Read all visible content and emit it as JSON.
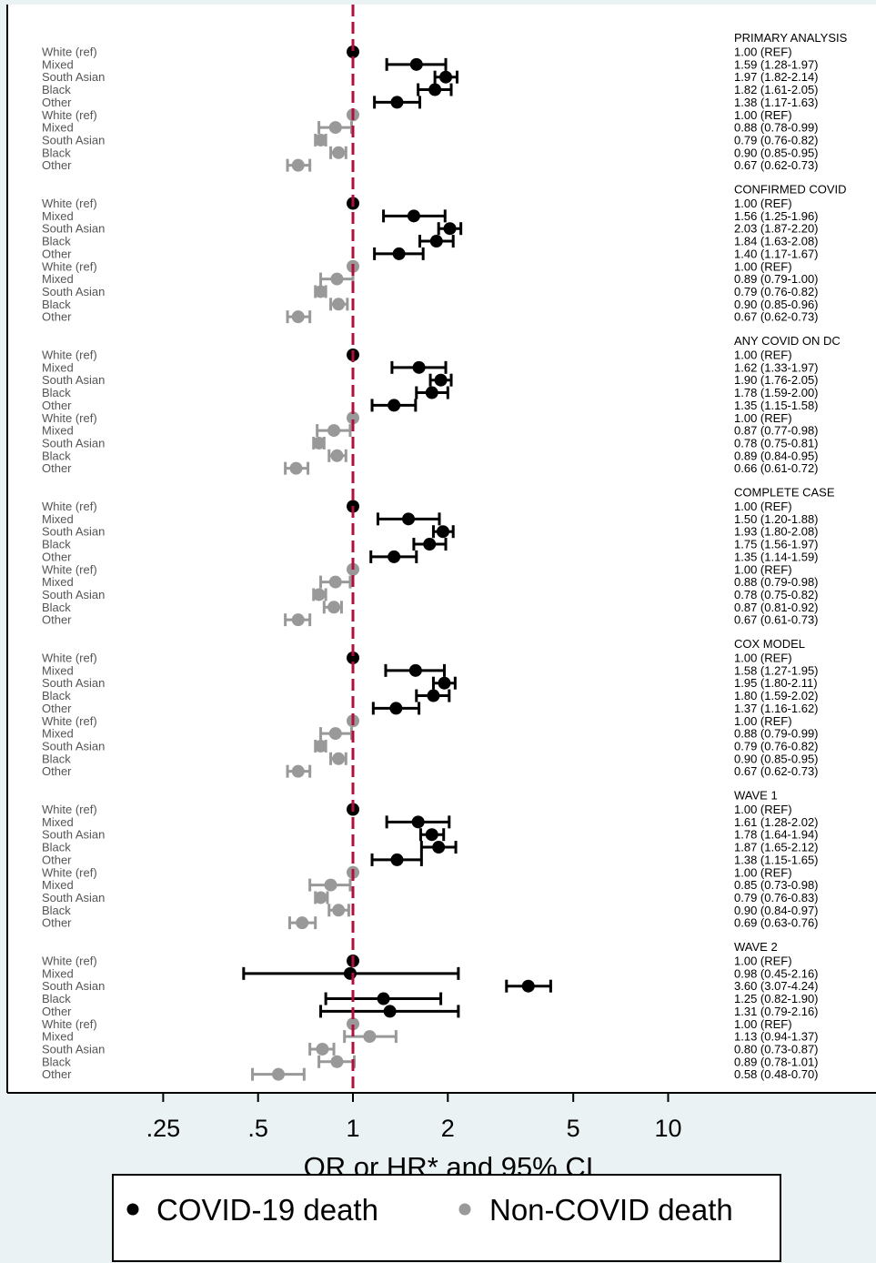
{
  "chart_data": {
    "type": "scatter",
    "subtype": "forest-plot",
    "x_scale": "log",
    "xlim": [
      0.2,
      19.5
    ],
    "reference_line_x": 1,
    "xticks": [
      0.25,
      0.5,
      1,
      2,
      5,
      10
    ],
    "xtick_labels": [
      ".25",
      ".5",
      "1",
      "2",
      "5",
      "10"
    ],
    "xlabel": "OR or HR* and 95% CI",
    "legend": [
      {
        "label": "COVID-19 death",
        "color": "#000000"
      },
      {
        "label": "Non-COVID death",
        "color": "#999999"
      }
    ],
    "legend_position": "bottom",
    "series_colors": {
      "covid": "#000000",
      "noncovid": "#999999"
    },
    "reference_line_color": "#b0103a",
    "panels": [
      {
        "title": "PRIMARY ANALYSIS",
        "rows": [
          {
            "label": "White (ref)",
            "series": "covid",
            "est": 1.0,
            "lo": 1.0,
            "hi": 1.0,
            "text": "1.00 (REF)"
          },
          {
            "label": "Mixed",
            "series": "covid",
            "est": 1.59,
            "lo": 1.28,
            "hi": 1.97,
            "text": "1.59 (1.28-1.97)"
          },
          {
            "label": "South Asian",
            "series": "covid",
            "est": 1.97,
            "lo": 1.82,
            "hi": 2.14,
            "text": "1.97 (1.82-2.14)"
          },
          {
            "label": "Black",
            "series": "covid",
            "est": 1.82,
            "lo": 1.61,
            "hi": 2.05,
            "text": "1.82 (1.61-2.05)"
          },
          {
            "label": "Other",
            "series": "covid",
            "est": 1.38,
            "lo": 1.17,
            "hi": 1.63,
            "text": "1.38 (1.17-1.63)"
          },
          {
            "label": "White (ref)",
            "series": "noncovid",
            "est": 1.0,
            "lo": 1.0,
            "hi": 1.0,
            "text": "1.00 (REF)"
          },
          {
            "label": "Mixed",
            "series": "noncovid",
            "est": 0.88,
            "lo": 0.78,
            "hi": 0.99,
            "text": "0.88 (0.78-0.99)"
          },
          {
            "label": "South Asian",
            "series": "noncovid",
            "est": 0.79,
            "lo": 0.76,
            "hi": 0.82,
            "text": "0.79 (0.76-0.82)"
          },
          {
            "label": "Black",
            "series": "noncovid",
            "est": 0.9,
            "lo": 0.85,
            "hi": 0.95,
            "text": "0.90 (0.85-0.95)"
          },
          {
            "label": "Other",
            "series": "noncovid",
            "est": 0.67,
            "lo": 0.62,
            "hi": 0.73,
            "text": "0.67 (0.62-0.73)"
          }
        ]
      },
      {
        "title": "CONFIRMED COVID",
        "rows": [
          {
            "label": "White (ref)",
            "series": "covid",
            "est": 1.0,
            "lo": 1.0,
            "hi": 1.0,
            "text": "1.00 (REF)"
          },
          {
            "label": "Mixed",
            "series": "covid",
            "est": 1.56,
            "lo": 1.25,
            "hi": 1.96,
            "text": "1.56 (1.25-1.96)"
          },
          {
            "label": "South Asian",
            "series": "covid",
            "est": 2.03,
            "lo": 1.87,
            "hi": 2.2,
            "text": "2.03 (1.87-2.20)"
          },
          {
            "label": "Black",
            "series": "covid",
            "est": 1.84,
            "lo": 1.63,
            "hi": 2.08,
            "text": "1.84 (1.63-2.08)"
          },
          {
            "label": "Other",
            "series": "covid",
            "est": 1.4,
            "lo": 1.17,
            "hi": 1.67,
            "text": "1.40 (1.17-1.67)"
          },
          {
            "label": "White (ref)",
            "series": "noncovid",
            "est": 1.0,
            "lo": 1.0,
            "hi": 1.0,
            "text": "1.00 (REF)"
          },
          {
            "label": "Mixed",
            "series": "noncovid",
            "est": 0.89,
            "lo": 0.79,
            "hi": 1.0,
            "text": "0.89 (0.79-1.00)"
          },
          {
            "label": "South Asian",
            "series": "noncovid",
            "est": 0.79,
            "lo": 0.76,
            "hi": 0.82,
            "text": "0.79 (0.76-0.82)"
          },
          {
            "label": "Black",
            "series": "noncovid",
            "est": 0.9,
            "lo": 0.85,
            "hi": 0.96,
            "text": "0.90 (0.85-0.96)"
          },
          {
            "label": "Other",
            "series": "noncovid",
            "est": 0.67,
            "lo": 0.62,
            "hi": 0.73,
            "text": "0.67 (0.62-0.73)"
          }
        ]
      },
      {
        "title": "ANY COVID ON DC",
        "rows": [
          {
            "label": "White (ref)",
            "series": "covid",
            "est": 1.0,
            "lo": 1.0,
            "hi": 1.0,
            "text": "1.00 (REF)"
          },
          {
            "label": "Mixed",
            "series": "covid",
            "est": 1.62,
            "lo": 1.33,
            "hi": 1.97,
            "text": "1.62 (1.33-1.97)"
          },
          {
            "label": "South Asian",
            "series": "covid",
            "est": 1.9,
            "lo": 1.76,
            "hi": 2.05,
            "text": "1.90 (1.76-2.05)"
          },
          {
            "label": "Black",
            "series": "covid",
            "est": 1.78,
            "lo": 1.59,
            "hi": 2.0,
            "text": "1.78 (1.59-2.00)"
          },
          {
            "label": "Other",
            "series": "covid",
            "est": 1.35,
            "lo": 1.15,
            "hi": 1.58,
            "text": "1.35 (1.15-1.58)"
          },
          {
            "label": "White (ref)",
            "series": "noncovid",
            "est": 1.0,
            "lo": 1.0,
            "hi": 1.0,
            "text": "1.00 (REF)"
          },
          {
            "label": "Mixed",
            "series": "noncovid",
            "est": 0.87,
            "lo": 0.77,
            "hi": 0.98,
            "text": "0.87 (0.77-0.98)"
          },
          {
            "label": "South Asian",
            "series": "noncovid",
            "est": 0.78,
            "lo": 0.75,
            "hi": 0.81,
            "text": "0.78 (0.75-0.81)"
          },
          {
            "label": "Black",
            "series": "noncovid",
            "est": 0.89,
            "lo": 0.84,
            "hi": 0.95,
            "text": "0.89 (0.84-0.95)"
          },
          {
            "label": "Other",
            "series": "noncovid",
            "est": 0.66,
            "lo": 0.61,
            "hi": 0.72,
            "text": "0.66 (0.61-0.72)"
          }
        ]
      },
      {
        "title": "COMPLETE CASE",
        "rows": [
          {
            "label": "White (ref)",
            "series": "covid",
            "est": 1.0,
            "lo": 1.0,
            "hi": 1.0,
            "text": "1.00 (REF)"
          },
          {
            "label": "Mixed",
            "series": "covid",
            "est": 1.5,
            "lo": 1.2,
            "hi": 1.88,
            "text": "1.50 (1.20-1.88)"
          },
          {
            "label": "South Asian",
            "series": "covid",
            "est": 1.93,
            "lo": 1.8,
            "hi": 2.08,
            "text": "1.93 (1.80-2.08)"
          },
          {
            "label": "Black",
            "series": "covid",
            "est": 1.75,
            "lo": 1.56,
            "hi": 1.97,
            "text": "1.75 (1.56-1.97)"
          },
          {
            "label": "Other",
            "series": "covid",
            "est": 1.35,
            "lo": 1.14,
            "hi": 1.59,
            "text": "1.35 (1.14-1.59)"
          },
          {
            "label": "White (ref)",
            "series": "noncovid",
            "est": 1.0,
            "lo": 1.0,
            "hi": 1.0,
            "text": "1.00 (REF)"
          },
          {
            "label": "Mixed",
            "series": "noncovid",
            "est": 0.88,
            "lo": 0.79,
            "hi": 0.98,
            "text": "0.88 (0.79-0.98)"
          },
          {
            "label": "South Asian",
            "series": "noncovid",
            "est": 0.78,
            "lo": 0.75,
            "hi": 0.82,
            "text": "0.78 (0.75-0.82)"
          },
          {
            "label": "Black",
            "series": "noncovid",
            "est": 0.87,
            "lo": 0.81,
            "hi": 0.92,
            "text": "0.87 (0.81-0.92)"
          },
          {
            "label": "Other",
            "series": "noncovid",
            "est": 0.67,
            "lo": 0.61,
            "hi": 0.73,
            "text": "0.67 (0.61-0.73)"
          }
        ]
      },
      {
        "title": "COX MODEL",
        "rows": [
          {
            "label": "White (ref)",
            "series": "covid",
            "est": 1.0,
            "lo": 1.0,
            "hi": 1.0,
            "text": "1.00 (REF)"
          },
          {
            "label": "Mixed",
            "series": "covid",
            "est": 1.58,
            "lo": 1.27,
            "hi": 1.95,
            "text": "1.58 (1.27-1.95)"
          },
          {
            "label": "South Asian",
            "series": "covid",
            "est": 1.95,
            "lo": 1.8,
            "hi": 2.11,
            "text": "1.95 (1.80-2.11)"
          },
          {
            "label": "Black",
            "series": "covid",
            "est": 1.8,
            "lo": 1.59,
            "hi": 2.02,
            "text": "1.80 (1.59-2.02)"
          },
          {
            "label": "Other",
            "series": "covid",
            "est": 1.37,
            "lo": 1.16,
            "hi": 1.62,
            "text": "1.37 (1.16-1.62)"
          },
          {
            "label": "White (ref)",
            "series": "noncovid",
            "est": 1.0,
            "lo": 1.0,
            "hi": 1.0,
            "text": "1.00 (REF)"
          },
          {
            "label": "Mixed",
            "series": "noncovid",
            "est": 0.88,
            "lo": 0.79,
            "hi": 0.99,
            "text": "0.88 (0.79-0.99)"
          },
          {
            "label": "South Asian",
            "series": "noncovid",
            "est": 0.79,
            "lo": 0.76,
            "hi": 0.82,
            "text": "0.79 (0.76-0.82)"
          },
          {
            "label": "Black",
            "series": "noncovid",
            "est": 0.9,
            "lo": 0.85,
            "hi": 0.95,
            "text": "0.90 (0.85-0.95)"
          },
          {
            "label": "Other",
            "series": "noncovid",
            "est": 0.67,
            "lo": 0.62,
            "hi": 0.73,
            "text": "0.67 (0.62-0.73)"
          }
        ]
      },
      {
        "title": "WAVE 1",
        "rows": [
          {
            "label": "White (ref)",
            "series": "covid",
            "est": 1.0,
            "lo": 1.0,
            "hi": 1.0,
            "text": "1.00 (REF)"
          },
          {
            "label": "Mixed",
            "series": "covid",
            "est": 1.61,
            "lo": 1.28,
            "hi": 2.02,
            "text": "1.61 (1.28-2.02)"
          },
          {
            "label": "South Asian",
            "series": "covid",
            "est": 1.78,
            "lo": 1.64,
            "hi": 1.94,
            "text": "1.78 (1.64-1.94)"
          },
          {
            "label": "Black",
            "series": "covid",
            "est": 1.87,
            "lo": 1.65,
            "hi": 2.12,
            "text": "1.87 (1.65-2.12)"
          },
          {
            "label": "Other",
            "series": "covid",
            "est": 1.38,
            "lo": 1.15,
            "hi": 1.65,
            "text": "1.38 (1.15-1.65)"
          },
          {
            "label": "White (ref)",
            "series": "noncovid",
            "est": 1.0,
            "lo": 1.0,
            "hi": 1.0,
            "text": "1.00 (REF)"
          },
          {
            "label": "Mixed",
            "series": "noncovid",
            "est": 0.85,
            "lo": 0.73,
            "hi": 0.98,
            "text": "0.85 (0.73-0.98)"
          },
          {
            "label": "South Asian",
            "series": "noncovid",
            "est": 0.79,
            "lo": 0.76,
            "hi": 0.83,
            "text": "0.79 (0.76-0.83)"
          },
          {
            "label": "Black",
            "series": "noncovid",
            "est": 0.9,
            "lo": 0.84,
            "hi": 0.97,
            "text": "0.90 (0.84-0.97)"
          },
          {
            "label": "Other",
            "series": "noncovid",
            "est": 0.69,
            "lo": 0.63,
            "hi": 0.76,
            "text": "0.69 (0.63-0.76)"
          }
        ]
      },
      {
        "title": "WAVE 2",
        "rows": [
          {
            "label": "White (ref)",
            "series": "covid",
            "est": 1.0,
            "lo": 1.0,
            "hi": 1.0,
            "text": "1.00 (REF)"
          },
          {
            "label": "Mixed",
            "series": "covid",
            "est": 0.98,
            "lo": 0.45,
            "hi": 2.16,
            "text": "0.98 (0.45-2.16)"
          },
          {
            "label": "South Asian",
            "series": "covid",
            "est": 3.6,
            "lo": 3.07,
            "hi": 4.24,
            "text": "3.60 (3.07-4.24)"
          },
          {
            "label": "Black",
            "series": "covid",
            "est": 1.25,
            "lo": 0.82,
            "hi": 1.9,
            "text": "1.25 (0.82-1.90)"
          },
          {
            "label": "Other",
            "series": "covid",
            "est": 1.31,
            "lo": 0.79,
            "hi": 2.16,
            "text": "1.31 (0.79-2.16)"
          },
          {
            "label": "White (ref)",
            "series": "noncovid",
            "est": 1.0,
            "lo": 1.0,
            "hi": 1.0,
            "text": "1.00 (REF)"
          },
          {
            "label": "Mixed",
            "series": "noncovid",
            "est": 1.13,
            "lo": 0.94,
            "hi": 1.37,
            "text": "1.13 (0.94-1.37)"
          },
          {
            "label": "South Asian",
            "series": "noncovid",
            "est": 0.8,
            "lo": 0.73,
            "hi": 0.87,
            "text": "0.80 (0.73-0.87)"
          },
          {
            "label": "Black",
            "series": "noncovid",
            "est": 0.89,
            "lo": 0.78,
            "hi": 1.01,
            "text": "0.89 (0.78-1.01)"
          },
          {
            "label": "Other",
            "series": "noncovid",
            "est": 0.58,
            "lo": 0.48,
            "hi": 0.7,
            "text": "0.58 (0.48-0.70)"
          }
        ]
      }
    ]
  }
}
